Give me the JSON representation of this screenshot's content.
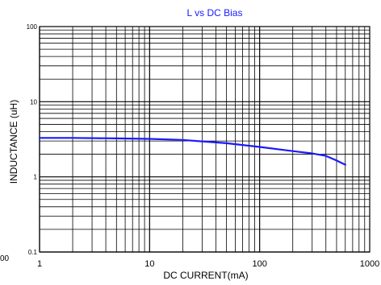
{
  "chart_data": {
    "type": "line",
    "title": "L vs DC Bias",
    "xlabel": "DC CURRENT(mA)",
    "ylabel": "INDUCTANCE (uH)",
    "x_scale": "log",
    "y_scale": "log",
    "xlim": [
      1,
      1000
    ],
    "ylim": [
      0.1,
      100
    ],
    "x_ticks": [
      "1",
      "10",
      "100",
      "1000"
    ],
    "y_ticks": [
      "0.1",
      "1",
      "10",
      "100"
    ],
    "grid": true,
    "series": [
      {
        "color": "#1a1aff",
        "x": [
          1,
          2,
          5,
          10,
          20,
          50,
          100,
          200,
          300,
          400,
          500,
          600
        ],
        "y": [
          3.3,
          3.3,
          3.25,
          3.2,
          3.1,
          2.8,
          2.5,
          2.2,
          2.05,
          1.9,
          1.65,
          1.45
        ]
      }
    ]
  },
  "edge_label": "00"
}
